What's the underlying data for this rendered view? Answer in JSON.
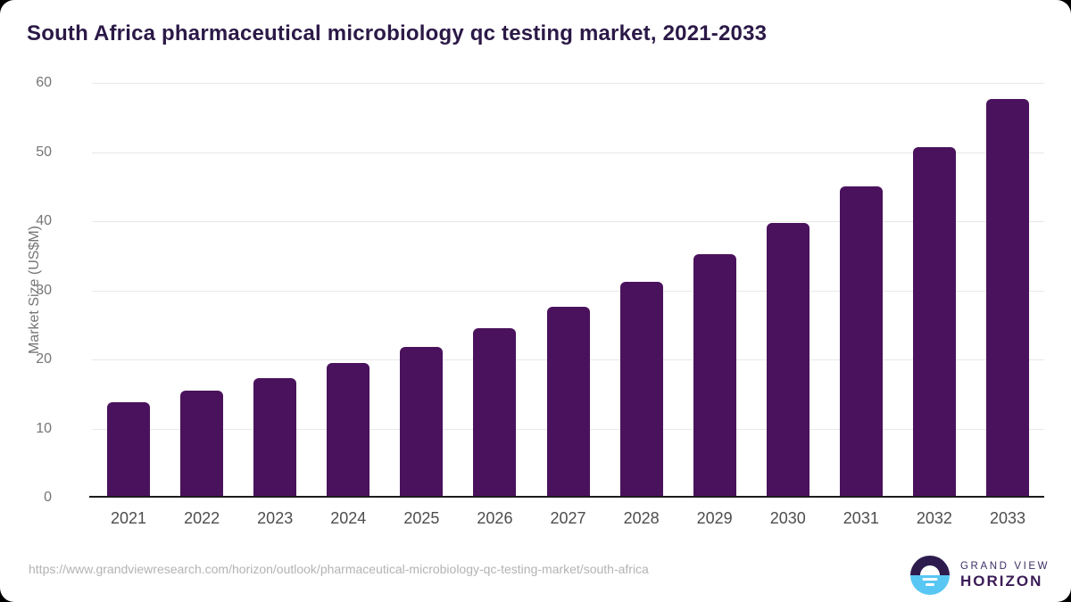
{
  "chart_data": {
    "type": "bar",
    "title": "South Africa pharmaceutical microbiology qc testing market, 2021-2033",
    "categories": [
      "2021",
      "2022",
      "2023",
      "2024",
      "2025",
      "2026",
      "2027",
      "2028",
      "2029",
      "2030",
      "2031",
      "2032",
      "2033"
    ],
    "values": [
      13.7,
      15.3,
      17.2,
      19.3,
      21.7,
      24.4,
      27.5,
      31.1,
      35.1,
      39.6,
      44.9,
      50.6,
      57.5
    ],
    "xlabel": "",
    "ylabel": "Market Size (US$M)",
    "ylim": [
      0,
      60
    ],
    "yticks": [
      0,
      10,
      20,
      30,
      40,
      50,
      60
    ],
    "grid": "horizontal",
    "legend": "none"
  },
  "footer": {
    "source_url": "https://www.grandviewresearch.com/horizon/outlook/pharmaceutical-microbiology-qc-testing-market/south-africa",
    "logo": {
      "line1": "GRAND VIEW",
      "line2": "HORIZON"
    }
  },
  "colors": {
    "title": "#2b1947",
    "bar": "#4a125c",
    "gridline": "#e8e8e8",
    "axis_line": "#1c1c1c",
    "axis_label": "#757575",
    "x_label": "#4d4d4d",
    "url": "#b3b3b3",
    "logo_dark": "#2d1b4e",
    "logo_light": "#58c7f3",
    "background": "#ffffff"
  }
}
